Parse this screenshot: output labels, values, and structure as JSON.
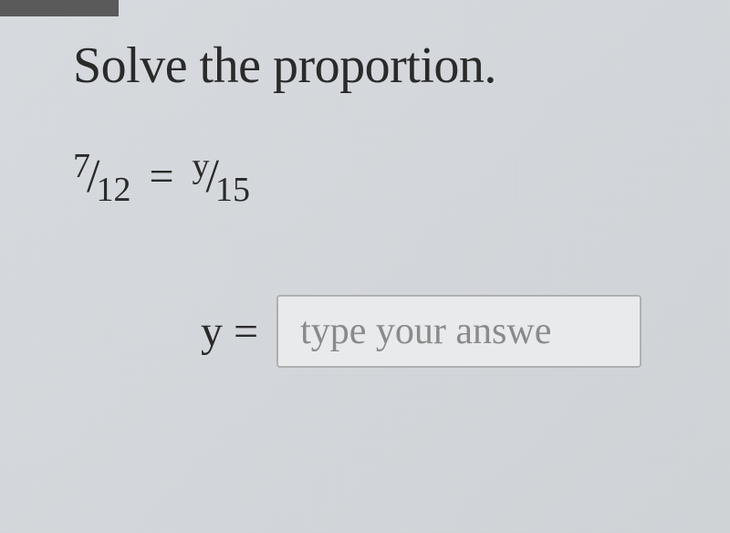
{
  "question": {
    "title": "Solve the proportion.",
    "equation": {
      "left_fraction": {
        "numerator": "7",
        "denominator": "12"
      },
      "operator": "=",
      "right_fraction": {
        "numerator": "y",
        "denominator": "15"
      }
    }
  },
  "answer": {
    "label": "y =",
    "placeholder": "type your answe",
    "value": ""
  },
  "colors": {
    "background": "#d8dce0",
    "text": "#2a2a2a",
    "placeholder": "#8a8a8a",
    "input_border": "#b0b0b0",
    "tab_remnant": "#5a5a5a"
  }
}
